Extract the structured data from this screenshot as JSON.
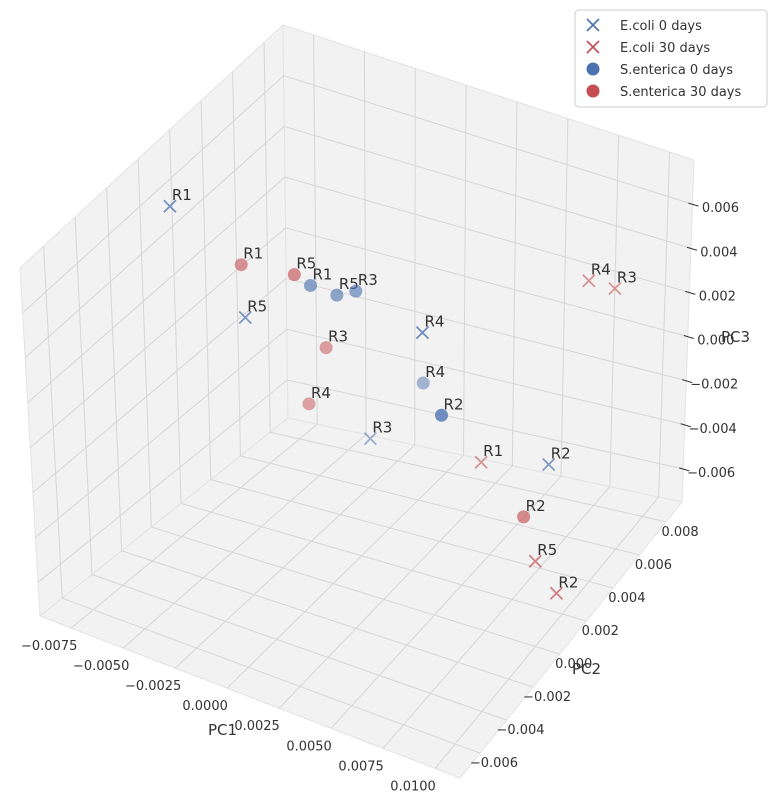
{
  "chart_data": {
    "type": "scatter3d",
    "title": "",
    "xlabel": "PC1",
    "ylabel": "PC2",
    "zlabel": "PC3",
    "x_ticks": [
      "−0.0075",
      "−0.0050",
      "−0.0025",
      "0.0000",
      "0.0025",
      "0.0050",
      "0.0075",
      "0.0100"
    ],
    "y_ticks": [
      "−0.006",
      "−0.004",
      "−0.002",
      "0.000",
      "0.002",
      "0.004",
      "0.006",
      "0.008"
    ],
    "z_ticks": [
      "0.006",
      "0.004",
      "0.002",
      "0.000",
      "−0.002",
      "−0.004",
      "−0.006"
    ],
    "legend_position": "top-right",
    "grid": true,
    "colors": {
      "blue": "#4c72b0",
      "red": "#c44e52",
      "pane": "#f2f2f2",
      "grid": "#d6d6d6"
    },
    "series": [
      {
        "name": "E.coli 0 days",
        "marker": "x",
        "color": "#4c72b0",
        "points": [
          {
            "label": "R1",
            "pc1": -0.0078,
            "pc2": 0.0003,
            "pc3": 0.0062
          },
          {
            "label": "R5",
            "pc1": -0.005,
            "pc2": 0.0012,
            "pc3": 0.0018
          },
          {
            "label": "R3",
            "pc1": -0.003,
            "pc2": 0.0068,
            "pc3": -0.006
          },
          {
            "label": "R4",
            "pc1": 0.0048,
            "pc2": -0.0008,
            "pc3": 0.0055
          },
          {
            "label": "R2",
            "pc1": 0.009,
            "pc2": 0.0022,
            "pc3": -0.0012
          }
        ]
      },
      {
        "name": "E.coli 30 days",
        "marker": "x",
        "color": "#c44e52",
        "points": [
          {
            "label": "R1",
            "pc1": 0.0035,
            "pc2": 0.0055,
            "pc3": -0.0048
          },
          {
            "label": "R4",
            "pc1": 0.0088,
            "pc2": 0.0052,
            "pc3": 0.0048
          },
          {
            "label": "R3",
            "pc1": 0.0095,
            "pc2": 0.0061,
            "pc3": 0.004
          },
          {
            "label": "R5",
            "pc1": 0.0086,
            "pc2": 0.002,
            "pc3": -0.0055
          },
          {
            "label": "R2",
            "pc1": 0.01,
            "pc2": 0.0015,
            "pc3": -0.0062
          }
        ]
      },
      {
        "name": "S.enterica 0 days",
        "marker": "o",
        "color": "#4c72b0",
        "points": [
          {
            "label": "R1",
            "pc1": -0.0035,
            "pc2": 0.0035,
            "pc3": 0.0022
          },
          {
            "label": "R5",
            "pc1": -0.0028,
            "pc2": 0.0043,
            "pc3": 0.0015
          },
          {
            "label": "R3",
            "pc1": -0.0018,
            "pc2": 0.0042,
            "pc3": 0.002
          },
          {
            "label": "R4",
            "pc1": -0.0012,
            "pc2": 0.008,
            "pc3": -0.004
          },
          {
            "label": "R2",
            "pc1": 0.006,
            "pc2": -0.0012,
            "pc3": 0.0025
          }
        ]
      },
      {
        "name": "S.enterica 30 days",
        "marker": "o",
        "color": "#c44e52",
        "points": [
          {
            "label": "R1",
            "pc1": -0.008,
            "pc2": 0.005,
            "pc3": 0.001
          },
          {
            "label": "R5",
            "pc1": -0.0045,
            "pc2": 0.0038,
            "pc3": 0.0022
          },
          {
            "label": "R3",
            "pc1": -0.0055,
            "pc2": 0.0072,
            "pc3": -0.003
          },
          {
            "label": "R4",
            "pc1": -0.007,
            "pc2": 0.008,
            "pc3": -0.006
          },
          {
            "label": "R2",
            "pc1": 0.007,
            "pc2": 0.0035,
            "pc3": -0.005
          }
        ]
      }
    ]
  }
}
